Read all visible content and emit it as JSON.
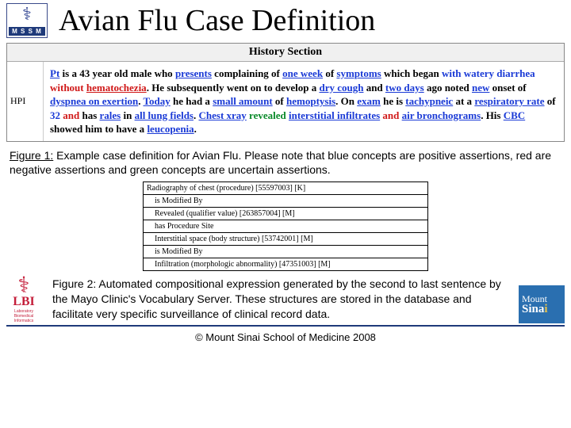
{
  "header": {
    "logo_label": "M S S M",
    "title": "Avian Flu Case Definition"
  },
  "history": {
    "section_title": "History Section",
    "row_label": "HPI",
    "tokens": [
      {
        "t": "Pt",
        "cls": "t-pos u"
      },
      {
        "t": " is a ",
        "cls": "t-bold"
      },
      {
        "t": "43 year old male",
        "cls": "t-bold"
      },
      {
        "t": " who ",
        "cls": "t-bold"
      },
      {
        "t": "presents",
        "cls": "t-pos u"
      },
      {
        "t": " complaining of ",
        "cls": "t-bold"
      },
      {
        "t": "one week",
        "cls": "t-pos u"
      },
      {
        "t": " of ",
        "cls": "t-bold"
      },
      {
        "t": "symptoms",
        "cls": "t-pos u"
      },
      {
        "t": " which began ",
        "cls": "t-bold"
      },
      {
        "t": "with watery diarrhea",
        "cls": "t-pos"
      },
      {
        "t": " without ",
        "cls": "t-neg"
      },
      {
        "t": "hematochezia",
        "cls": "t-neg u"
      },
      {
        "t": ". He subsequently went on to develop a ",
        "cls": "t-bold"
      },
      {
        "t": "dry cough",
        "cls": "t-pos u"
      },
      {
        "t": " and ",
        "cls": "t-bold"
      },
      {
        "t": "two days",
        "cls": "t-pos u"
      },
      {
        "t": " ago noted ",
        "cls": "t-bold"
      },
      {
        "t": "new",
        "cls": "t-pos u"
      },
      {
        "t": " onset of ",
        "cls": "t-bold"
      },
      {
        "t": "dyspnea on exertion",
        "cls": "t-pos u"
      },
      {
        "t": ". ",
        "cls": "t-bold"
      },
      {
        "t": "Today",
        "cls": "t-pos u"
      },
      {
        "t": " he had a ",
        "cls": "t-bold"
      },
      {
        "t": "small amount",
        "cls": "t-pos u"
      },
      {
        "t": " of ",
        "cls": "t-bold"
      },
      {
        "t": "hemoptysis",
        "cls": "t-pos u"
      },
      {
        "t": ". On ",
        "cls": "t-bold"
      },
      {
        "t": "exam",
        "cls": "t-pos u"
      },
      {
        "t": " he is ",
        "cls": "t-bold"
      },
      {
        "t": "tachypneic",
        "cls": "t-pos u"
      },
      {
        "t": " at a ",
        "cls": "t-bold"
      },
      {
        "t": "respiratory rate",
        "cls": "t-pos u"
      },
      {
        "t": " of ",
        "cls": "t-bold"
      },
      {
        "t": "32",
        "cls": "t-pos"
      },
      {
        "t": " and ",
        "cls": "t-neg"
      },
      {
        "t": " has ",
        "cls": "t-bold"
      },
      {
        "t": "rales",
        "cls": "t-pos u"
      },
      {
        "t": " in ",
        "cls": "t-bold"
      },
      {
        "t": "all lung fields",
        "cls": "t-pos u"
      },
      {
        "t": ". ",
        "cls": "t-bold"
      },
      {
        "t": "Chest xray",
        "cls": "t-pos u"
      },
      {
        "t": " revealed ",
        "cls": "t-unc"
      },
      {
        "t": "interstitial infiltrates",
        "cls": "t-pos u"
      },
      {
        "t": " and ",
        "cls": "t-neg"
      },
      {
        "t": "air bronchograms",
        "cls": "t-pos u"
      },
      {
        "t": ". His ",
        "cls": "t-bold"
      },
      {
        "t": "CBC",
        "cls": "t-pos u"
      },
      {
        "t": " showed him to have a ",
        "cls": "t-bold"
      },
      {
        "t": "leucopenia",
        "cls": "t-pos u"
      },
      {
        "t": ".",
        "cls": "t-bold"
      }
    ]
  },
  "figure1": {
    "label": "Figure 1:",
    "text": "Example case definition for Avian Flu.  Please note that blue concepts are positive assertions, red are negative assertions and green concepts are uncertain assertions."
  },
  "terms": [
    {
      "text": "Radiography of chest (procedure) [55597003] [K]",
      "sub": false
    },
    {
      "text": "is Modified By",
      "sub": true
    },
    {
      "text": "Revealed (qualifier value) [263857004] [M]",
      "sub": true
    },
    {
      "text": "has Procedure Site",
      "sub": true
    },
    {
      "text": "Interstitial space (body structure) [53742001] [M]",
      "sub": true
    },
    {
      "text": "is Modified By",
      "sub": true
    },
    {
      "text": "Infiltration (morphologic abnormality) [47351003] [M]",
      "sub": true
    }
  ],
  "figure2": {
    "label": "Figure 2:",
    "text": "Automated compositional expression generated by the second to last sentence by the Mayo Clinic's Vocabulary Server.  These structures are stored in the database and facilitate very specific surveillance of clinical record data."
  },
  "footer": {
    "lbi_big": "LBI",
    "lbi_small": "Laboratory\nBiomedical\nInformatics",
    "ms_l1": "Mount",
    "ms_l2a": "Sina",
    "ms_l2b": "i",
    "copyright": "© Mount Sinai School of Medicine 2008"
  }
}
